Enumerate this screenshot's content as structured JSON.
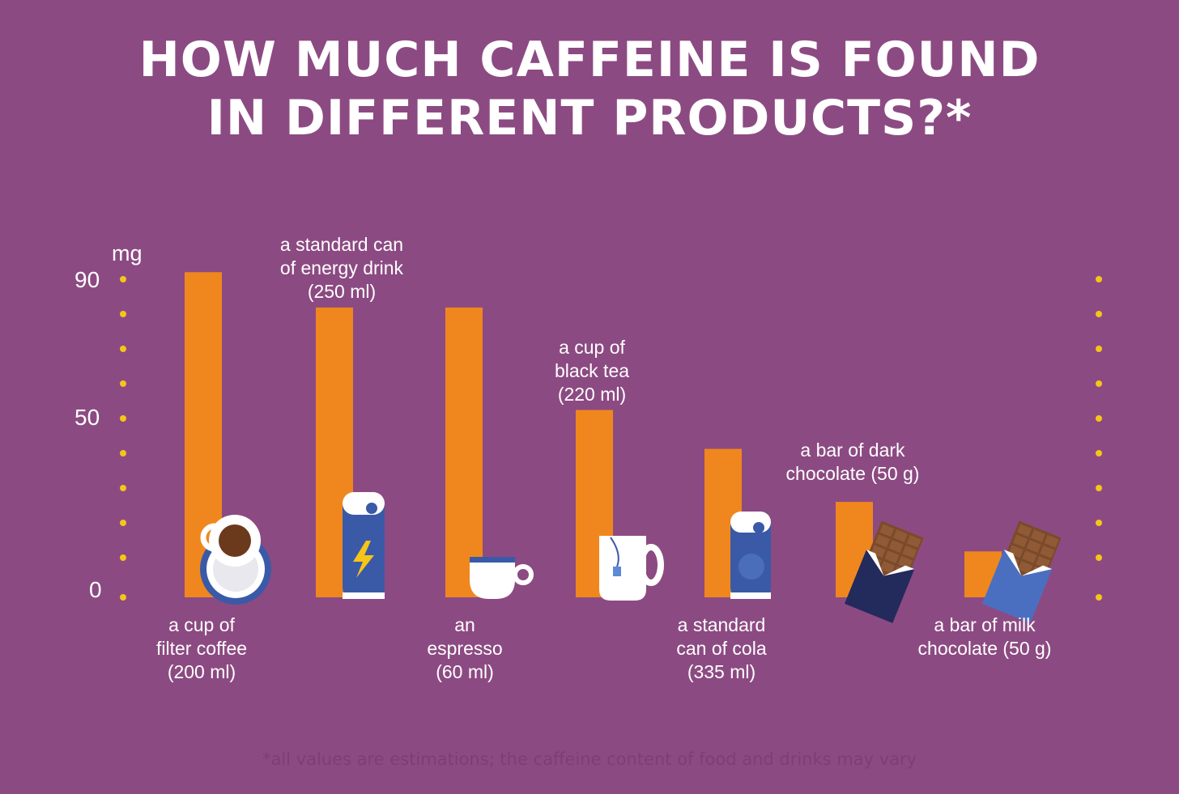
{
  "title": {
    "line1": "HOW MUCH CAFFEINE IS FOUND",
    "line2": "IN DIFFERENT PRODUCTS?*"
  },
  "footnote": "*all values are estimations; the caffeine content of food and drinks may vary",
  "colors": {
    "background": "#8c4a82",
    "bar": "#f0871e",
    "dots": "#f5c518",
    "can": "#3a5aa8",
    "text": "#ffffff"
  },
  "chart_data": {
    "type": "bar",
    "unit": "mg",
    "ylim": [
      0,
      90
    ],
    "yticks": [
      0,
      50,
      90
    ],
    "categories": [
      "a cup of filter coffee (200 ml)",
      "a standard can of energy drink (250 ml)",
      "an espresso (60 ml)",
      "a cup of black tea (220 ml)",
      "a standard can of cola (335 ml)",
      "a bar of dark chocolate (50 g)",
      "a bar of milk chocolate (50 g)"
    ],
    "labels": [
      [
        "a cup of",
        "filter coffee",
        "(200 ml)"
      ],
      [
        "a standard can",
        "of energy drink",
        "(250 ml)"
      ],
      [
        "an",
        "espresso",
        "(60 ml)"
      ],
      [
        "a cup of",
        "black tea",
        "(220 ml)"
      ],
      [
        "a standard",
        "can of cola",
        "(335 ml)"
      ],
      [
        "a bar of dark",
        "chocolate (50 g)"
      ],
      [
        "a bar of milk",
        "chocolate (50 g)"
      ]
    ],
    "icons": [
      "coffee-cup-icon",
      "energy-drink-can-icon",
      "espresso-cup-icon",
      "tea-mug-icon",
      "cola-can-icon",
      "dark-chocolate-bar-icon",
      "milk-chocolate-bar-icon"
    ],
    "values": [
      92,
      82,
      82,
      53,
      42,
      27,
      13
    ],
    "grid": false
  }
}
